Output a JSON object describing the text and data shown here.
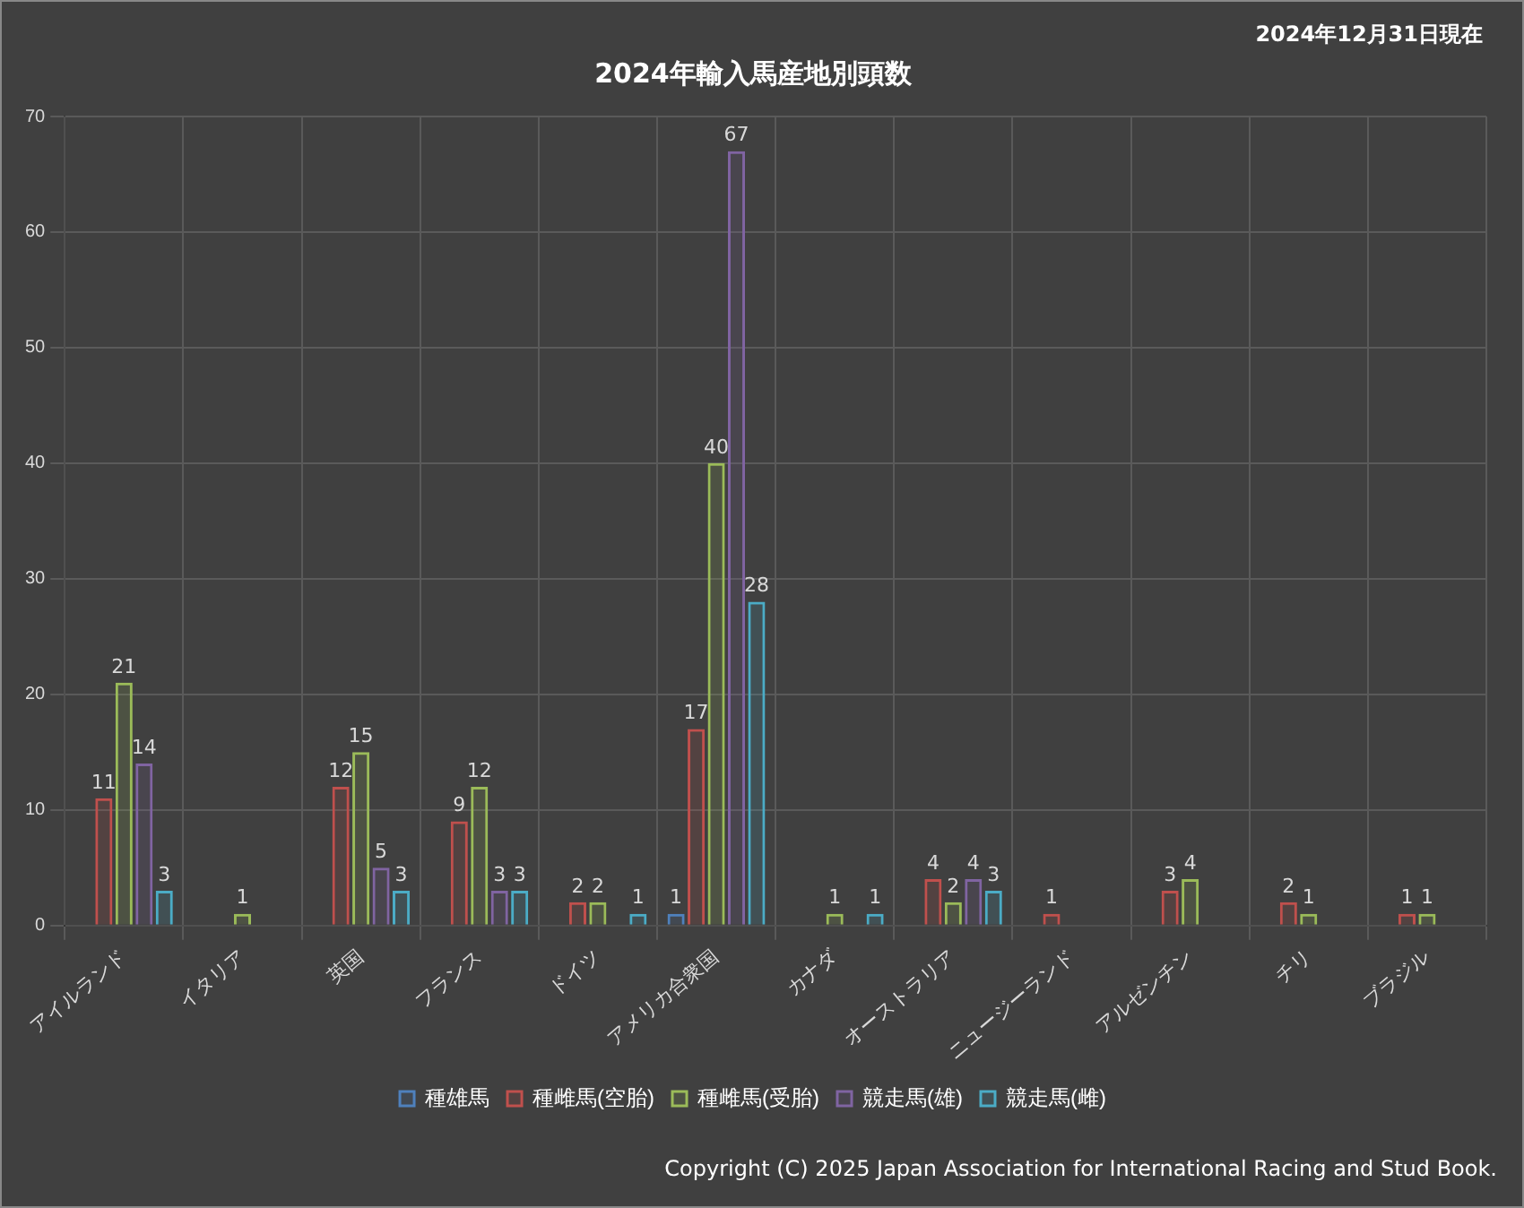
{
  "chart_data": {
    "type": "bar",
    "title": "2024年輸入馬産地別頭数",
    "categories": [
      "アイルランド",
      "イタリア",
      "英国",
      "フランス",
      "ドイツ",
      "アメリカ合衆国",
      "カナダ",
      "オーストラリア",
      "ニュージーランド",
      "アルゼンチン",
      "チリ",
      "ブラジル"
    ],
    "series": [
      {
        "name": "種雄馬",
        "color": "#4f81bd",
        "values": [
          null,
          null,
          null,
          null,
          null,
          1,
          null,
          null,
          null,
          null,
          null,
          null
        ]
      },
      {
        "name": "種雌馬(空胎)",
        "color": "#c0504d",
        "values": [
          11,
          null,
          12,
          9,
          2,
          17,
          null,
          4,
          1,
          3,
          2,
          1
        ]
      },
      {
        "name": "種雌馬(受胎)",
        "color": "#9bbb59",
        "values": [
          21,
          1,
          15,
          12,
          2,
          40,
          1,
          2,
          null,
          4,
          1,
          1
        ]
      },
      {
        "name": "競走馬(雄)",
        "color": "#8064a2",
        "values": [
          14,
          null,
          5,
          3,
          null,
          67,
          null,
          4,
          null,
          null,
          null,
          null
        ]
      },
      {
        "name": "競走馬(雌)",
        "color": "#4bacc6",
        "values": [
          3,
          null,
          3,
          3,
          1,
          28,
          1,
          3,
          null,
          null,
          null,
          null
        ]
      }
    ],
    "ylim": [
      0,
      70
    ],
    "yticks": [
      0,
      10,
      20,
      30,
      40,
      50,
      60,
      70
    ],
    "grid": true,
    "legend": "bottom",
    "data_labels": true,
    "annotations": [
      "2024年12月31日現在",
      "Copyright (C) 2025 Japan Association for International Racing and Stud Book."
    ]
  }
}
